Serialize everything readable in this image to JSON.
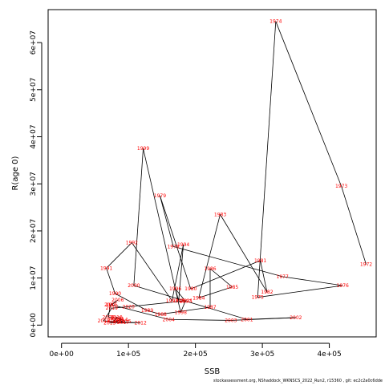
{
  "chart_data": {
    "type": "line",
    "xlabel": "SSB",
    "ylabel": "R(age 0)",
    "xlim": [
      -20000,
      470000
    ],
    "ylim": [
      -2500000,
      67000000
    ],
    "x_ticks": [
      {
        "value": 0,
        "label": "0e+00"
      },
      {
        "value": 100000,
        "label": "1e+05"
      },
      {
        "value": 200000,
        "label": "2e+05"
      },
      {
        "value": 300000,
        "label": "3e+05"
      },
      {
        "value": 400000,
        "label": "4e+05"
      }
    ],
    "y_ticks": [
      {
        "value": 0,
        "label": "0e+00"
      },
      {
        "value": 10000000,
        "label": "1e+07"
      },
      {
        "value": 20000000,
        "label": "2e+07"
      },
      {
        "value": 30000000,
        "label": "3e+07"
      },
      {
        "value": 40000000,
        "label": "4e+07"
      },
      {
        "value": 50000000,
        "label": "5e+07"
      },
      {
        "value": 60000000,
        "label": "6e+07"
      }
    ],
    "line_color": "#000000",
    "label_color": "#ff0000",
    "points": [
      {
        "year": "1972",
        "x": 455000,
        "y": 12900000
      },
      {
        "year": "1973",
        "x": 418000,
        "y": 29500000
      },
      {
        "year": "1974",
        "x": 320000,
        "y": 64500000
      },
      {
        "year": "1975",
        "x": 293000,
        "y": 5900000
      },
      {
        "year": "1976",
        "x": 420000,
        "y": 8400000
      },
      {
        "year": "1977",
        "x": 330000,
        "y": 10300000
      },
      {
        "year": "1978",
        "x": 167000,
        "y": 16700000
      },
      {
        "year": "1979",
        "x": 147000,
        "y": 27500000
      },
      {
        "year": "1980",
        "x": 193000,
        "y": 7700000
      },
      {
        "year": "1981",
        "x": 297000,
        "y": 13700000
      },
      {
        "year": "1982",
        "x": 307000,
        "y": 7000000
      },
      {
        "year": "1983",
        "x": 237000,
        "y": 23500000
      },
      {
        "year": "1984",
        "x": 205000,
        "y": 5800000
      },
      {
        "year": "1985",
        "x": 255000,
        "y": 8100000
      },
      {
        "year": "1986",
        "x": 222000,
        "y": 12000000
      },
      {
        "year": "1987",
        "x": 222000,
        "y": 3800000
      },
      {
        "year": "1988",
        "x": 148000,
        "y": 2300000
      },
      {
        "year": "1989",
        "x": 128000,
        "y": 3100000
      },
      {
        "year": "1990",
        "x": 80000,
        "y": 6700000
      },
      {
        "year": "1991",
        "x": 67000,
        "y": 12100000
      },
      {
        "year": "1992",
        "x": 105000,
        "y": 17500000
      },
      {
        "year": "1993",
        "x": 165000,
        "y": 5200000
      },
      {
        "year": "1994",
        "x": 182000,
        "y": 17100000
      },
      {
        "year": "1995",
        "x": 175000,
        "y": 5200000
      },
      {
        "year": "1996",
        "x": 170000,
        "y": 7700000
      },
      {
        "year": "1997",
        "x": 185000,
        "y": 5100000
      },
      {
        "year": "1998",
        "x": 178000,
        "y": 2700000
      },
      {
        "year": "1999",
        "x": 122000,
        "y": 37500000
      },
      {
        "year": "2000",
        "x": 108000,
        "y": 8400000
      },
      {
        "year": "2001",
        "x": 277000,
        "y": 1200000
      },
      {
        "year": "2002",
        "x": 350000,
        "y": 1600000
      },
      {
        "year": "2003",
        "x": 253000,
        "y": 1000000
      },
      {
        "year": "2004",
        "x": 160000,
        "y": 1200000
      },
      {
        "year": "2005",
        "x": 75000,
        "y": 4300000
      },
      {
        "year": "2006",
        "x": 84000,
        "y": 5300000
      },
      {
        "year": "2007",
        "x": 73000,
        "y": 4300000
      },
      {
        "year": "2008",
        "x": 70000,
        "y": 1700000
      },
      {
        "year": "2009",
        "x": 83000,
        "y": 1400000
      },
      {
        "year": "2010",
        "x": 78000,
        "y": 1000000
      },
      {
        "year": "2011",
        "x": 85000,
        "y": 700000
      },
      {
        "year": "2012",
        "x": 118000,
        "y": 500000
      },
      {
        "year": "2013",
        "x": 72000,
        "y": 500000
      },
      {
        "year": "2014",
        "x": 90000,
        "y": 1200000
      },
      {
        "year": "2015",
        "x": 95000,
        "y": 800000
      },
      {
        "year": "2016",
        "x": 82000,
        "y": 1700000
      },
      {
        "year": "2017",
        "x": 92000,
        "y": 600000
      },
      {
        "year": "2018",
        "x": 63000,
        "y": 900000
      },
      {
        "year": "2019",
        "x": 75000,
        "y": 3600000
      },
      {
        "year": "2020",
        "x": 100000,
        "y": 3900000
      },
      {
        "year": "2021",
        "x": 187000,
        "y": 5200000
      }
    ]
  },
  "footer_text": "stockassessment.org,  NShaddock_WKNSCS_2022_Run2,  r15360 ,  git:  ec2c2a0c6dde"
}
